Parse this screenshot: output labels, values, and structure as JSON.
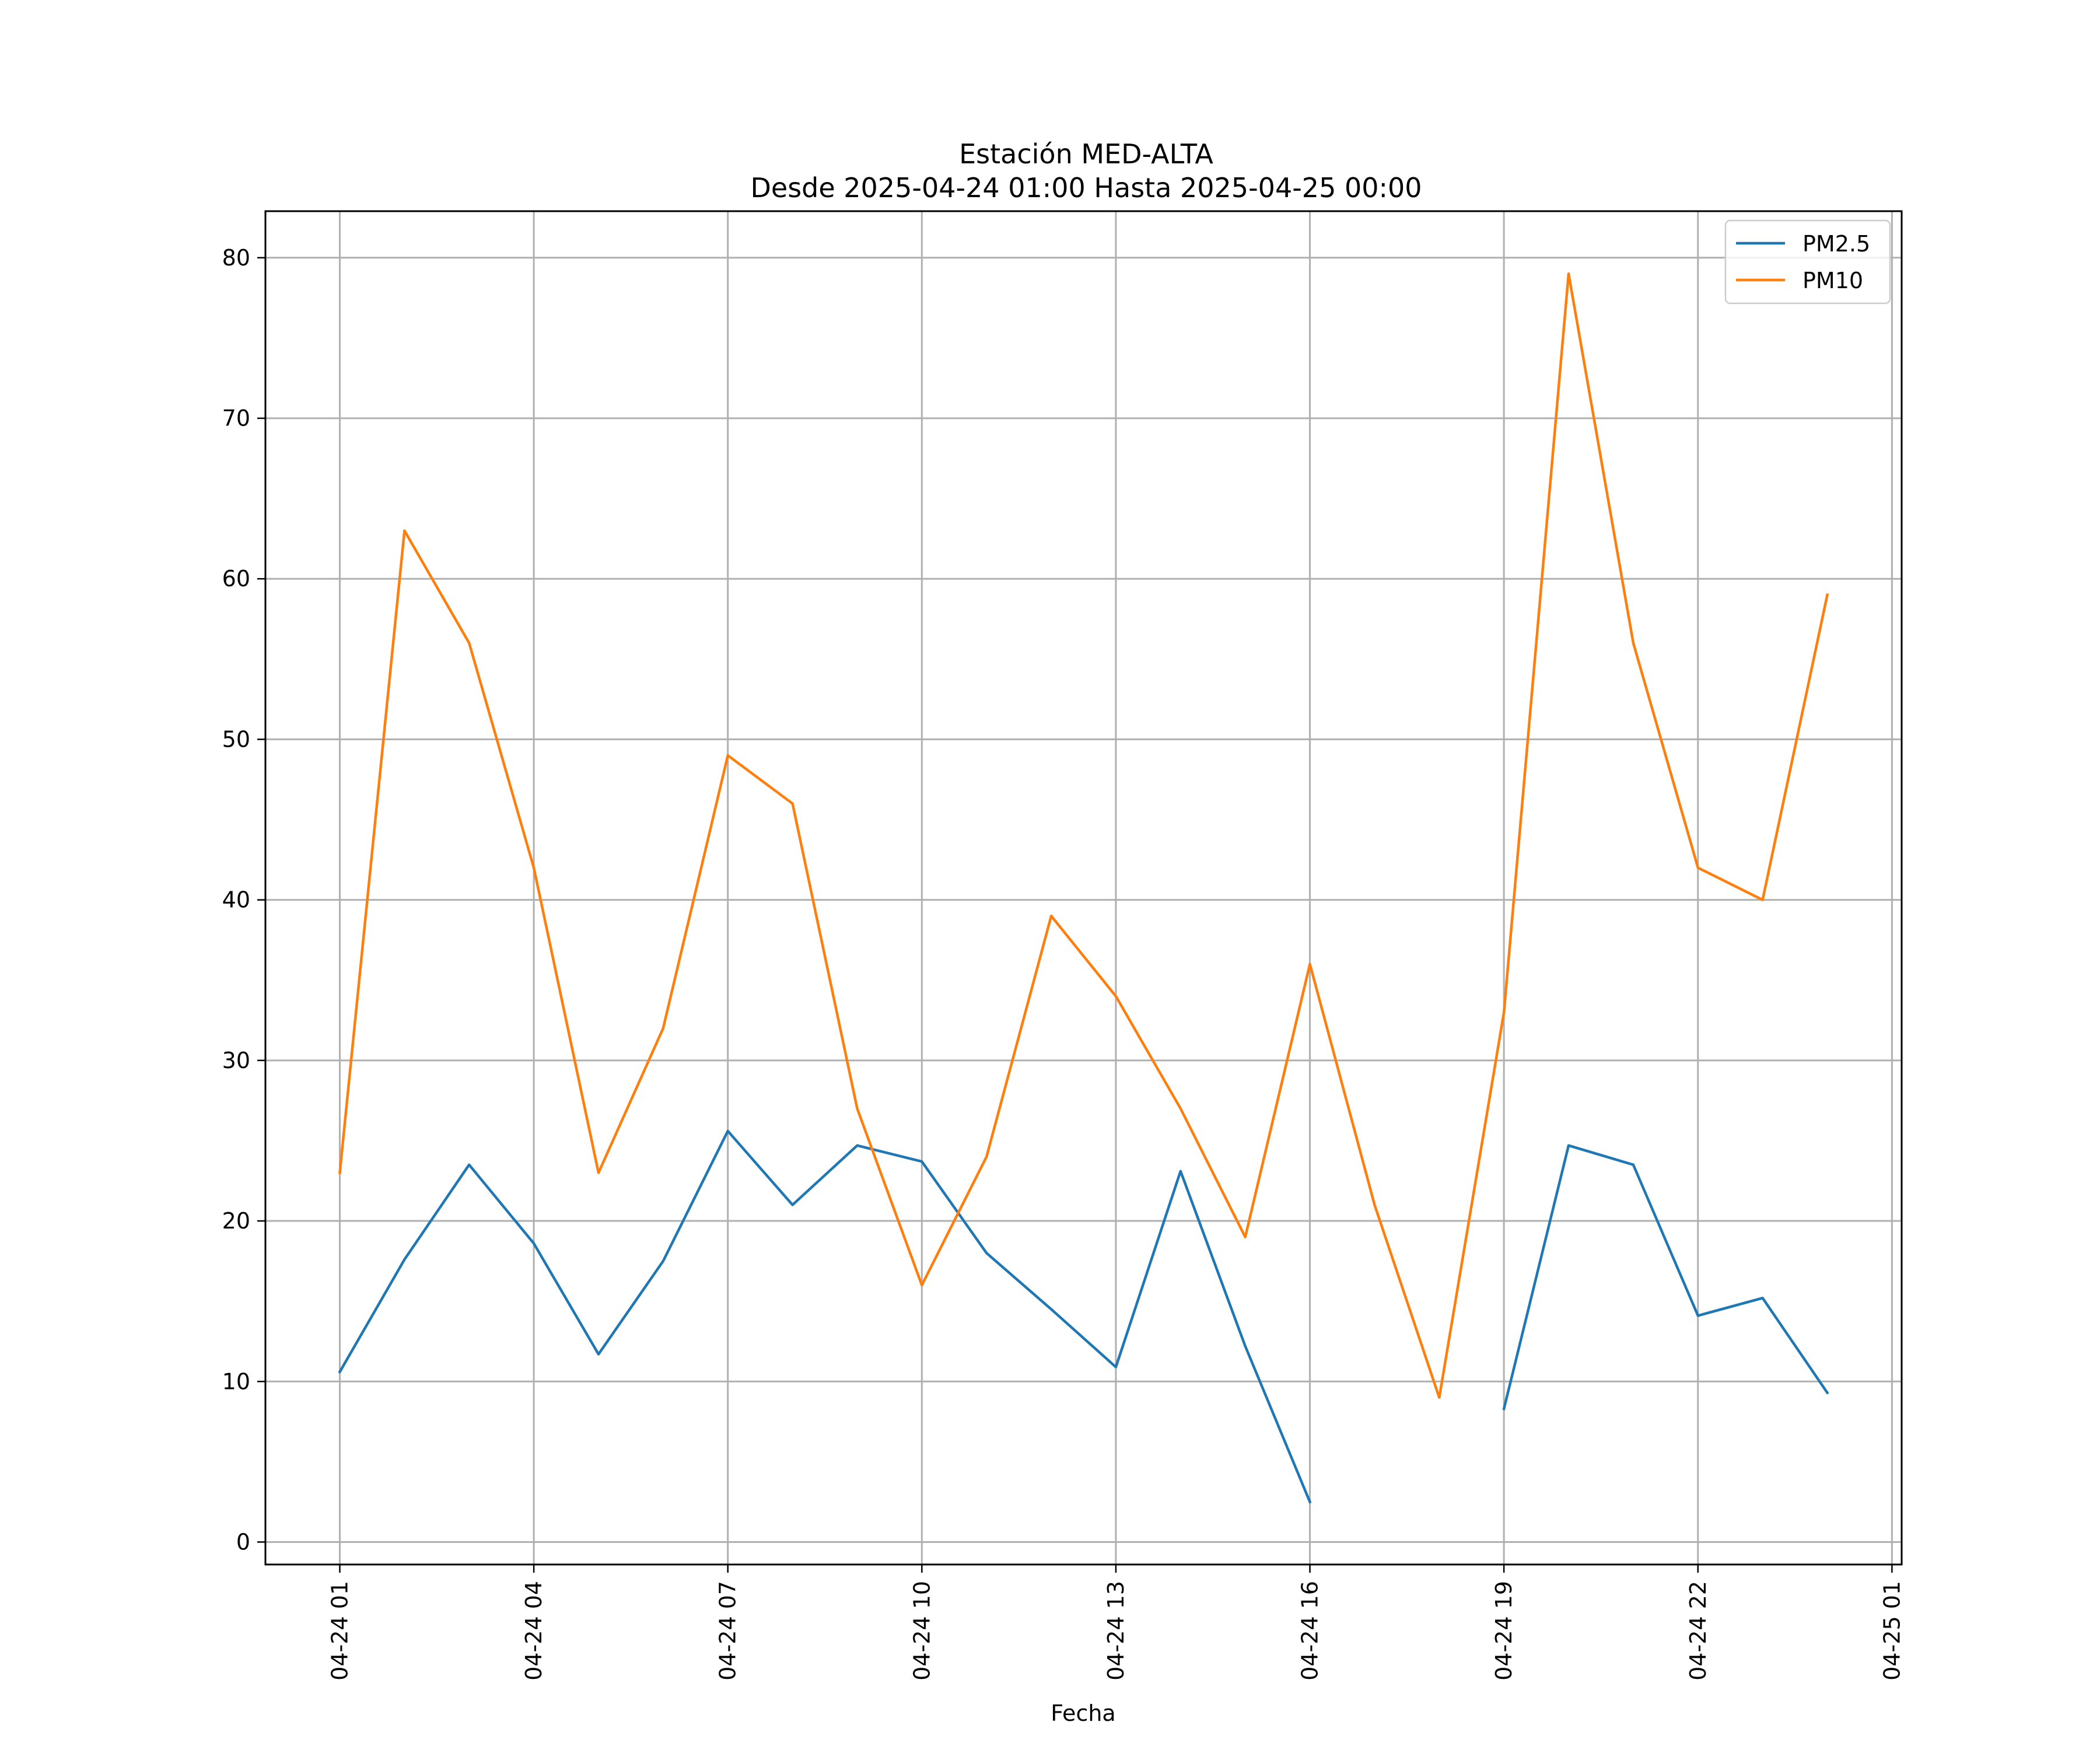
{
  "chart_data": {
    "type": "line",
    "title": "Estación MED-ALTA",
    "subtitle": "Desde 2025-04-24 01:00 Hasta 2025-04-25 00:00",
    "xlabel": "Fecha",
    "ylabel": "",
    "x": [
      "04-24 01",
      "04-24 02",
      "04-24 03",
      "04-24 04",
      "04-24 05",
      "04-24 06",
      "04-24 07",
      "04-24 08",
      "04-24 09",
      "04-24 10",
      "04-24 11",
      "04-24 12",
      "04-24 13",
      "04-24 14",
      "04-24 15",
      "04-24 16",
      "04-24 17",
      "04-24 18",
      "04-24 19",
      "04-24 20",
      "04-24 21",
      "04-24 22",
      "04-24 23",
      "04-25 00"
    ],
    "x_ticks": [
      "04-24 01",
      "04-24 04",
      "04-24 07",
      "04-24 10",
      "04-24 13",
      "04-24 16",
      "04-24 19",
      "04-24 22",
      "04-25 01"
    ],
    "y_ticks": [
      0,
      10,
      20,
      30,
      40,
      50,
      60,
      70,
      80
    ],
    "ylim": [
      -1.4,
      82.9
    ],
    "xlim_hours": [
      -1.15,
      24.15
    ],
    "grid": true,
    "legend_position": "top-right",
    "series": [
      {
        "name": "PM2.5",
        "color": "#1f77b4",
        "values": [
          10.6,
          17.6,
          23.5,
          18.6,
          11.7,
          17.5,
          25.6,
          21.0,
          24.7,
          23.7,
          18.0,
          14.5,
          10.9,
          23.1,
          12.2,
          2.5,
          null,
          null,
          8.3,
          24.7,
          23.5,
          14.1,
          15.2,
          9.3
        ]
      },
      {
        "name": "PM10",
        "color": "#ff7f0e",
        "values": [
          23,
          63,
          56,
          42,
          23,
          32,
          49,
          46,
          27,
          16,
          24,
          39,
          34,
          27,
          19,
          36,
          21,
          9,
          33,
          79,
          56,
          42,
          40,
          59
        ]
      }
    ]
  }
}
